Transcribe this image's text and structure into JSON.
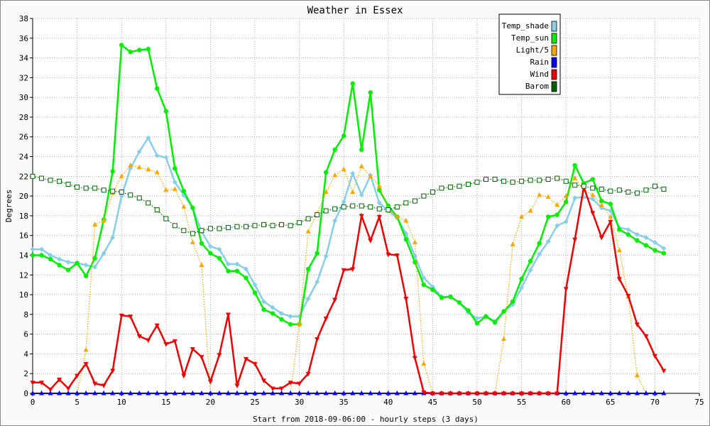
{
  "chart_data": {
    "type": "line",
    "title": "Weather in Essex",
    "xlabel": "Start from 2018-09-06:00 - hourly steps (3 days)",
    "ylabel": "Degrees",
    "xlim": [
      0,
      75
    ],
    "ylim": [
      0,
      38
    ],
    "xticks": [
      0,
      5,
      10,
      15,
      20,
      25,
      30,
      35,
      40,
      45,
      50,
      55,
      60,
      65,
      70,
      75
    ],
    "yticks": [
      0,
      2,
      4,
      6,
      8,
      10,
      12,
      14,
      16,
      18,
      20,
      22,
      24,
      26,
      28,
      30,
      32,
      34,
      36,
      38
    ],
    "grid": true,
    "legend_position": "top-right",
    "series": [
      {
        "name": "Temp_shade",
        "color": "#87ceeb",
        "style": "solid",
        "marker": "diamond",
        "values": [
          14.6,
          14.6,
          14.0,
          13.6,
          13.3,
          13.2,
          13.0,
          12.8,
          14.2,
          15.8,
          20.0,
          22.8,
          24.5,
          25.9,
          24.1,
          23.9,
          21.4,
          20.1,
          18.8,
          16.4,
          14.9,
          14.6,
          13.1,
          13.1,
          12.6,
          11.0,
          9.3,
          8.7,
          8.1,
          7.8,
          7.8,
          9.6,
          11.3,
          13.9,
          17.5,
          19.4,
          22.3,
          20.1,
          22.1,
          19.3,
          18.5,
          17.8,
          16.2,
          13.9,
          11.7,
          10.8,
          9.8,
          9.8,
          9.2,
          8.2,
          7.6,
          7.8,
          7.3,
          8.3,
          9.0,
          10.7,
          12.5,
          14.1,
          15.4,
          17.0,
          17.4,
          19.8,
          19.9,
          19.7,
          18.8,
          18.5,
          16.8,
          16.6,
          16.1,
          15.8,
          15.3,
          14.7
        ]
      },
      {
        "name": "Temp_sun",
        "color": "#00ee00",
        "style": "solid",
        "marker": "circle",
        "values": [
          14.0,
          14.0,
          13.6,
          13.0,
          12.5,
          13.2,
          11.9,
          13.7,
          17.6,
          22.5,
          35.3,
          34.6,
          34.8,
          34.9,
          30.9,
          28.6,
          22.8,
          20.5,
          18.8,
          15.2,
          14.2,
          13.7,
          12.4,
          12.4,
          11.7,
          10.2,
          8.5,
          8.1,
          7.5,
          7.0,
          7.0,
          12.6,
          14.2,
          22.4,
          24.7,
          26.1,
          31.4,
          24.7,
          30.5,
          20.6,
          19.0,
          17.9,
          15.6,
          13.3,
          11.0,
          10.5,
          9.7,
          9.8,
          9.2,
          8.4,
          7.1,
          7.8,
          7.2,
          8.3,
          9.3,
          11.6,
          13.4,
          15.2,
          17.9,
          18.1,
          19.4,
          23.1,
          21.3,
          21.7,
          19.5,
          19.2,
          16.6,
          16.1,
          15.5,
          15.0,
          14.5,
          14.2
        ]
      },
      {
        "name": "Light/5",
        "color": "#ffa500",
        "style": "dotted",
        "marker": "triangle-up",
        "values": [
          0,
          0,
          0,
          0,
          0,
          0,
          4.4,
          17.1,
          17.5,
          20.3,
          22.0,
          23.1,
          22.9,
          22.7,
          22.4,
          20.6,
          20.7,
          18.9,
          15.3,
          13.0,
          0,
          0,
          0,
          0,
          0,
          0,
          0,
          0,
          0,
          0,
          7.0,
          16.4,
          18.2,
          20.4,
          22.1,
          22.7,
          20.4,
          23.0,
          22.0,
          21.0,
          18.7,
          17.9,
          17.5,
          15.3,
          3.0,
          0,
          0,
          0,
          0,
          0,
          0,
          0,
          0,
          5.5,
          15.1,
          17.9,
          18.5,
          20.1,
          19.9,
          19.1,
          20.0,
          21.8,
          20.6,
          20.1,
          19.1,
          17.9,
          14.5,
          9.8,
          1.8,
          0,
          0,
          0
        ]
      },
      {
        "name": "Rain",
        "color": "#0000ff",
        "style": "solid",
        "marker": "triangle-up",
        "values": [
          0,
          0,
          0,
          0,
          0,
          0,
          0,
          0,
          0,
          0,
          0,
          0,
          0,
          0,
          0,
          0,
          0,
          0,
          0,
          0,
          0,
          0,
          0,
          0,
          0,
          0,
          0,
          0,
          0,
          0,
          0,
          0,
          0,
          0,
          0,
          0,
          0,
          0,
          0,
          0,
          0,
          0,
          0,
          0,
          0,
          0,
          0,
          0,
          0,
          0,
          0,
          0,
          0,
          0,
          0,
          0,
          0,
          0,
          0,
          0,
          0,
          0,
          0,
          0,
          0,
          0,
          0,
          0,
          0,
          0,
          0,
          0
        ]
      },
      {
        "name": "Wind",
        "color": "#ee0000",
        "style": "solid",
        "marker": "triangle-down",
        "values": [
          1.1,
          1.1,
          0.4,
          1.4,
          0.5,
          1.8,
          3.0,
          1.0,
          0.8,
          2.3,
          7.9,
          7.8,
          5.8,
          5.4,
          6.9,
          5.0,
          5.3,
          1.8,
          4.5,
          3.7,
          1.2,
          3.9,
          8.0,
          0.8,
          3.5,
          3.0,
          1.3,
          0.5,
          0.5,
          1.1,
          1.0,
          2.0,
          5.5,
          7.6,
          9.5,
          12.5,
          12.6,
          18.0,
          15.5,
          17.9,
          14.1,
          14.0,
          9.6,
          3.6,
          0.1,
          0,
          0,
          0,
          0,
          0,
          0,
          0,
          0,
          0,
          0,
          0,
          0,
          0,
          0,
          0,
          10.6,
          15.6,
          20.9,
          18.3,
          15.8,
          17.4,
          11.6,
          9.9,
          7.0,
          5.8,
          3.8,
          2.3
        ]
      },
      {
        "name": "Barom",
        "color": "#006400",
        "style": "dotted",
        "marker": "square",
        "values": [
          22.0,
          21.8,
          21.6,
          21.5,
          21.2,
          20.9,
          20.8,
          20.8,
          20.6,
          20.5,
          20.4,
          20.1,
          19.8,
          19.3,
          18.6,
          17.7,
          17.0,
          16.5,
          16.2,
          16.5,
          16.7,
          16.7,
          16.8,
          16.9,
          16.9,
          17.0,
          17.1,
          17.0,
          17.1,
          17.0,
          17.3,
          17.7,
          18.1,
          18.5,
          18.7,
          18.9,
          19.0,
          19.0,
          18.9,
          18.7,
          18.6,
          18.9,
          19.3,
          19.5,
          20.0,
          20.4,
          20.8,
          20.9,
          21.0,
          21.2,
          21.4,
          21.7,
          21.7,
          21.5,
          21.4,
          21.5,
          21.6,
          21.6,
          21.7,
          21.8,
          21.5,
          21.1,
          21.0,
          20.8,
          20.7,
          20.5,
          20.6,
          20.4,
          20.3,
          20.6,
          21.0,
          20.7
        ]
      }
    ]
  }
}
